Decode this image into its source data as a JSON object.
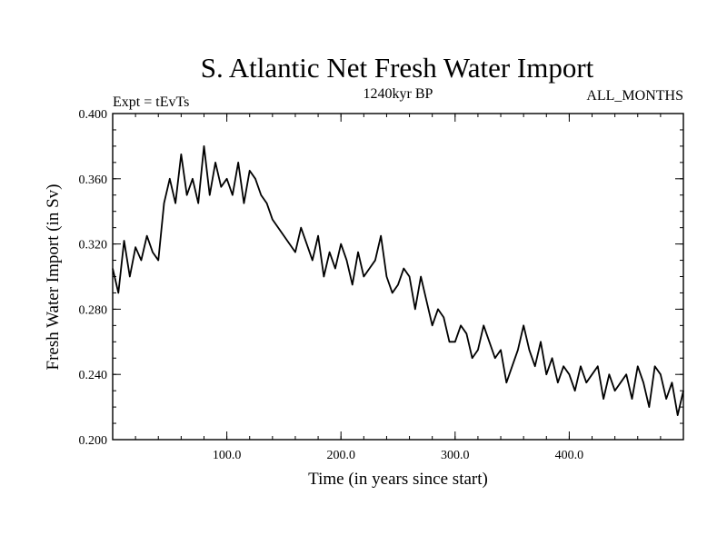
{
  "chart_data": {
    "type": "line",
    "title": "S. Atlantic Net Fresh Water Import",
    "subtitle_left": "Expt = tEvTs",
    "subtitle_center": "1240kyr BP",
    "subtitle_right": "ALL_MONTHS",
    "xlabel": "Time (in years since start)",
    "ylabel": "Fresh Water Import (in Sv)",
    "xlim": [
      0,
      500
    ],
    "ylim": [
      0.2,
      0.4
    ],
    "x_ticks": [
      100,
      200,
      300,
      400
    ],
    "x_tick_labels": [
      "100.0",
      "200.0",
      "300.0",
      "400.0"
    ],
    "y_ticks": [
      0.2,
      0.24,
      0.28,
      0.32,
      0.36,
      0.4
    ],
    "y_tick_labels": [
      "0.200",
      "0.240",
      "0.280",
      "0.320",
      "0.360",
      "0.400"
    ],
    "grid": false,
    "series": [
      {
        "name": "Fresh Water Import",
        "color": "#000000",
        "x": [
          0,
          5,
          10,
          15,
          20,
          25,
          30,
          35,
          40,
          45,
          50,
          55,
          60,
          65,
          70,
          75,
          80,
          85,
          90,
          95,
          100,
          105,
          110,
          115,
          120,
          125,
          130,
          135,
          140,
          145,
          150,
          155,
          160,
          165,
          170,
          175,
          180,
          185,
          190,
          195,
          200,
          205,
          210,
          215,
          220,
          225,
          230,
          235,
          240,
          245,
          250,
          255,
          260,
          265,
          270,
          275,
          280,
          285,
          290,
          295,
          300,
          305,
          310,
          315,
          320,
          325,
          330,
          335,
          340,
          345,
          350,
          355,
          360,
          365,
          370,
          375,
          380,
          385,
          390,
          395,
          400,
          405,
          410,
          415,
          420,
          425,
          430,
          435,
          440,
          445,
          450,
          455,
          460,
          465,
          470,
          475,
          480,
          485,
          490,
          495,
          500
        ],
        "values": [
          0.305,
          0.29,
          0.322,
          0.3,
          0.318,
          0.31,
          0.325,
          0.315,
          0.31,
          0.345,
          0.36,
          0.345,
          0.375,
          0.35,
          0.36,
          0.345,
          0.38,
          0.35,
          0.37,
          0.355,
          0.36,
          0.35,
          0.37,
          0.345,
          0.365,
          0.36,
          0.35,
          0.345,
          0.335,
          0.33,
          0.325,
          0.32,
          0.315,
          0.33,
          0.32,
          0.31,
          0.325,
          0.3,
          0.315,
          0.305,
          0.32,
          0.31,
          0.295,
          0.315,
          0.3,
          0.305,
          0.31,
          0.325,
          0.3,
          0.29,
          0.295,
          0.305,
          0.3,
          0.28,
          0.3,
          0.285,
          0.27,
          0.28,
          0.275,
          0.26,
          0.26,
          0.27,
          0.265,
          0.25,
          0.255,
          0.27,
          0.26,
          0.25,
          0.255,
          0.235,
          0.245,
          0.255,
          0.27,
          0.255,
          0.245,
          0.26,
          0.24,
          0.25,
          0.235,
          0.245,
          0.24,
          0.23,
          0.245,
          0.235,
          0.24,
          0.245,
          0.225,
          0.24,
          0.23,
          0.235,
          0.24,
          0.225,
          0.245,
          0.235,
          0.22,
          0.245,
          0.24,
          0.225,
          0.235,
          0.215,
          0.23
        ]
      }
    ]
  }
}
